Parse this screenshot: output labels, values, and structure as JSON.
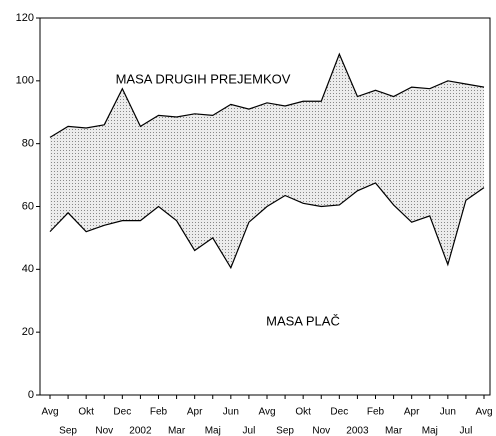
{
  "chart_data": {
    "type": "area",
    "categories": [
      "Avg",
      "Sep",
      "Okt",
      "Nov",
      "Dec",
      "2002",
      "Feb",
      "Mar",
      "Apr",
      "Maj",
      "Jun",
      "Jul",
      "Avg",
      "Sep",
      "Okt",
      "Nov",
      "Dec",
      "2003",
      "Feb",
      "Mar",
      "Apr",
      "Maj",
      "Jun",
      "Jul",
      "Avg"
    ],
    "series": [
      {
        "name": "MASA PLAČ",
        "color": "#ffffff",
        "values": [
          52,
          58,
          52,
          54,
          55.5,
          55.5,
          60,
          55.5,
          46,
          50,
          40.5,
          55,
          60,
          63.5,
          61,
          60,
          60.5,
          65,
          67.5,
          60.5,
          55,
          57,
          41.5,
          62,
          66
        ]
      },
      {
        "name": "MASA DRUGIH PREJEMKOV",
        "color": "#cfcfcf",
        "values": [
          82,
          85.5,
          85,
          86,
          97.5,
          85.5,
          89,
          88.5,
          89.5,
          89,
          92.5,
          91,
          93,
          92,
          93.5,
          93.5,
          108.5,
          95,
          97,
          95,
          98,
          97.5,
          100,
          99,
          98
        ]
      }
    ],
    "ylim": [
      0,
      120
    ],
    "yticks": [
      0,
      20,
      40,
      60,
      80,
      100,
      120
    ]
  }
}
